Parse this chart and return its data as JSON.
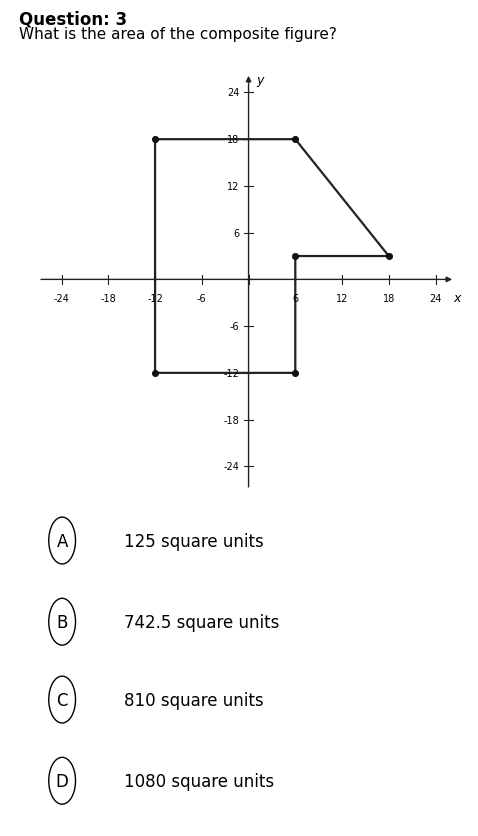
{
  "title": "Question: 3",
  "subtitle": "What is the area of the composite figure?",
  "axis_range": [
    -27,
    27,
    -27,
    27
  ],
  "x_ticks": [
    -24,
    -18,
    -12,
    -6,
    0,
    6,
    12,
    18,
    24
  ],
  "y_ticks": [
    -24,
    -18,
    -12,
    -6,
    0,
    6,
    12,
    18,
    24
  ],
  "figure_vertices": [
    [
      -12,
      18
    ],
    [
      6,
      18
    ],
    [
      18,
      3
    ],
    [
      6,
      3
    ],
    [
      6,
      -12
    ],
    [
      -12,
      -12
    ]
  ],
  "dot_points": [
    [
      -12,
      18
    ],
    [
      6,
      18
    ],
    [
      18,
      3
    ],
    [
      6,
      3
    ],
    [
      6,
      -12
    ],
    [
      -12,
      -12
    ]
  ],
  "choices": [
    {
      "label": "A",
      "text": "125 square units"
    },
    {
      "label": "B",
      "text": "742.5 square units"
    },
    {
      "label": "C",
      "text": "810 square units"
    },
    {
      "label": "D",
      "text": "1080 square units"
    }
  ],
  "figure_color": "#222222",
  "dot_color": "#111111",
  "axis_color": "#222222",
  "title_fontsize": 12,
  "subtitle_fontsize": 11,
  "choice_fontsize": 12,
  "tick_fontsize": 7
}
